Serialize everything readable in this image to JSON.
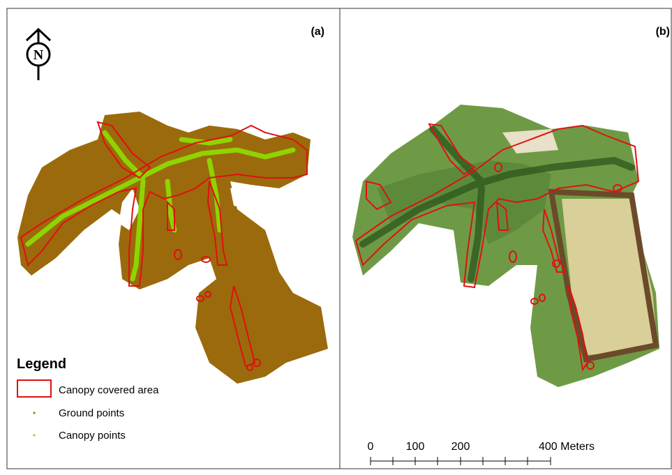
{
  "panels": [
    {
      "label": "(a)"
    },
    {
      "label": "(b)"
    }
  ],
  "north_arrow": {
    "label": "N"
  },
  "legend": {
    "title": "Legend",
    "items": [
      "Canopy covered area",
      "Ground points",
      "Canopy points"
    ]
  },
  "scale_bar": {
    "labels": [
      "0",
      "100",
      "200",
      "400 Meters"
    ]
  }
}
